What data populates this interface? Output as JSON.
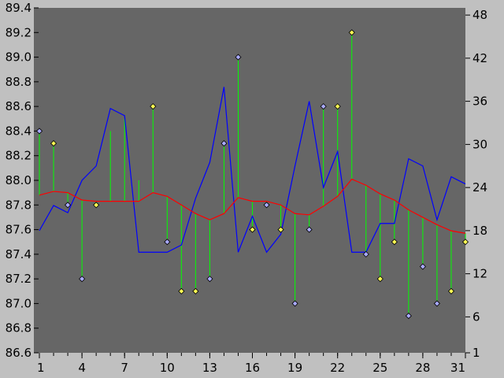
{
  "colors": {
    "background": "#c0c0c0",
    "plot": "#666666",
    "blue_line": "#0000ff",
    "red_line": "#ff0000",
    "stem": "#00ff00",
    "marker_blue": "#aaaaff",
    "marker_yellow": "#ffff55",
    "marker_edge": "#000000"
  },
  "chart_data": {
    "type": "line",
    "title": "",
    "xlabel": "",
    "ylabel": "",
    "x": [
      1,
      2,
      3,
      4,
      5,
      6,
      7,
      8,
      9,
      10,
      11,
      12,
      13,
      14,
      15,
      16,
      17,
      18,
      19,
      20,
      21,
      22,
      23,
      24,
      25,
      26,
      27,
      28,
      29,
      30,
      31
    ],
    "x_ticks": [
      1,
      4,
      7,
      10,
      13,
      16,
      19,
      22,
      25,
      28,
      31
    ],
    "xlim": [
      1,
      31
    ],
    "ylim_left": [
      86.6,
      89.4
    ],
    "y_ticks_left": [
      "86.6",
      "86.8",
      "87.0",
      "87.2",
      "87.4",
      "87.6",
      "87.8",
      "88.0",
      "88.2",
      "88.4",
      "88.6",
      "88.8",
      "89.0",
      "89.2",
      "89.4"
    ],
    "ylim_right": [
      1,
      49
    ],
    "y_ticks_right": [
      "1",
      "6",
      "12",
      "18",
      "24",
      "30",
      "36",
      "42",
      "48"
    ],
    "grid": false,
    "legend": "none",
    "series": [
      {
        "axis": "right",
        "style": "line",
        "color": "blue_line",
        "values": [
          18,
          21.5,
          20.5,
          25,
          27,
          35,
          34,
          15,
          15,
          15,
          16,
          22.5,
          27.5,
          38,
          15,
          20,
          15,
          17.5,
          27,
          36,
          24,
          29,
          15,
          15,
          19,
          19,
          28,
          27,
          19.5,
          25.5,
          24.5
        ]
      },
      {
        "axis": "left",
        "style": "line",
        "color": "red_line",
        "values": [
          87.88,
          87.91,
          87.9,
          87.84,
          87.83,
          87.83,
          87.83,
          87.83,
          87.9,
          87.87,
          87.8,
          87.73,
          87.68,
          87.73,
          87.86,
          87.83,
          87.83,
          87.8,
          87.73,
          87.72,
          87.79,
          87.87,
          88.01,
          87.96,
          87.89,
          87.84,
          87.76,
          87.7,
          87.64,
          87.59,
          87.57
        ]
      },
      {
        "axis": "left",
        "style": "stem-marker",
        "values": [
          88.4,
          88.3,
          87.8,
          87.2,
          87.8,
          88.4,
          88.5,
          88.0,
          88.6,
          87.5,
          87.1,
          87.1,
          87.2,
          88.3,
          89.0,
          87.6,
          87.8,
          87.6,
          87.0,
          87.6,
          88.6,
          88.6,
          89.2,
          87.4,
          87.2,
          87.5,
          86.9,
          87.3,
          87.0,
          87.1,
          87.5
        ],
        "marker_colors": [
          "marker_blue",
          "marker_yellow",
          "marker_blue",
          "marker_blue",
          "marker_yellow",
          "",
          "",
          "",
          "marker_yellow",
          "marker_blue",
          "marker_yellow",
          "marker_yellow",
          "marker_blue",
          "marker_blue",
          "marker_blue",
          "marker_yellow",
          "marker_blue",
          "marker_yellow",
          "marker_blue",
          "marker_blue",
          "marker_blue",
          "marker_yellow",
          "marker_yellow",
          "marker_blue",
          "marker_yellow",
          "marker_yellow",
          "marker_blue",
          "marker_blue",
          "marker_blue",
          "marker_yellow",
          "marker_yellow"
        ]
      }
    ]
  }
}
